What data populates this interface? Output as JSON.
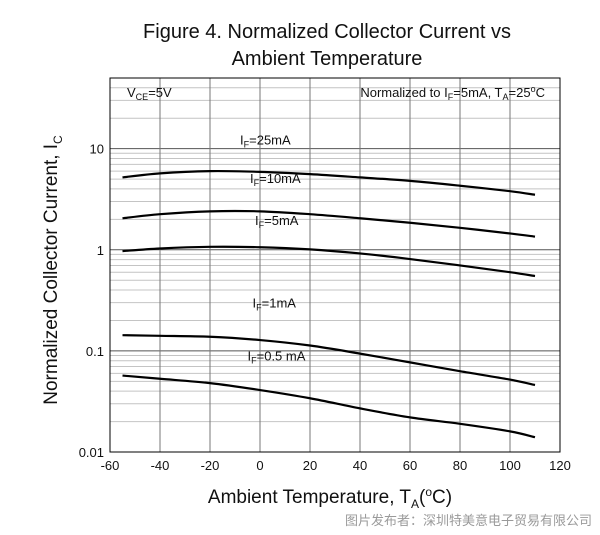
{
  "chart_data": {
    "type": "line",
    "title_lines": [
      "Figure 4. Normalized Collector Current vs",
      "Ambient Temperature"
    ],
    "xlabel": {
      "main": "Ambient Temperature, T",
      "sub": "A",
      "unit_open": "(",
      "unit_sup": "o",
      "unit_close": "C)"
    },
    "ylabel": {
      "main": "Normalized Collector Current, I",
      "sub": "C"
    },
    "xlim": [
      -60,
      120
    ],
    "ylim": [
      0.01,
      50
    ],
    "yscale": "log",
    "grid": true,
    "x_ticks": [
      -60,
      -40,
      -20,
      0,
      20,
      40,
      60,
      80,
      100,
      120
    ],
    "y_ticks": [
      {
        "value": 0.01,
        "label": "0.01"
      },
      {
        "value": 0.1,
        "label": "0.1"
      },
      {
        "value": 1,
        "label": "1"
      },
      {
        "value": 10,
        "label": "10"
      }
    ],
    "annotation_left": {
      "pre": "V",
      "sub": "CE",
      "post": "=5V"
    },
    "annotation_right": {
      "pre": "Normalized to I",
      "sub1": "F",
      "mid": "=5mA, T",
      "sub2": "A",
      "mid2": "=25",
      "sup": "o",
      "post": "C"
    },
    "series": [
      {
        "label_pre": "I",
        "label_sub": "F",
        "label_post": "=25mA",
        "label_x": -8,
        "label_y": 11,
        "x": [
          -55,
          -40,
          -20,
          0,
          20,
          40,
          60,
          80,
          100,
          110
        ],
        "y": [
          5.2,
          5.7,
          6.0,
          5.9,
          5.6,
          5.2,
          4.8,
          4.3,
          3.8,
          3.5
        ]
      },
      {
        "label_pre": "I",
        "label_sub": "F",
        "label_post": "=10mA",
        "label_x": -4,
        "label_y": 4.6,
        "x": [
          -55,
          -40,
          -20,
          0,
          20,
          40,
          60,
          80,
          100,
          110
        ],
        "y": [
          2.05,
          2.25,
          2.4,
          2.4,
          2.25,
          2.05,
          1.85,
          1.65,
          1.45,
          1.35
        ]
      },
      {
        "label_pre": "I",
        "label_sub": "F",
        "label_post": "=5mA",
        "label_x": -2,
        "label_y": 1.75,
        "x": [
          -55,
          -40,
          -20,
          0,
          20,
          40,
          60,
          80,
          100,
          110
        ],
        "y": [
          0.97,
          1.03,
          1.07,
          1.06,
          1.01,
          0.92,
          0.81,
          0.7,
          0.6,
          0.55
        ]
      },
      {
        "label_pre": "I",
        "label_sub": "F",
        "label_post": "=1mA",
        "label_x": -3,
        "label_y": 0.27,
        "x": [
          -55,
          -40,
          -20,
          0,
          20,
          40,
          60,
          80,
          100,
          110
        ],
        "y": [
          0.143,
          0.141,
          0.138,
          0.128,
          0.113,
          0.094,
          0.077,
          0.063,
          0.052,
          0.046
        ]
      },
      {
        "label_pre": "I",
        "label_sub": "F",
        "label_post": "=0.5 mA",
        "label_x": -5,
        "label_y": 0.08,
        "x": [
          -55,
          -40,
          -20,
          0,
          20,
          40,
          60,
          80,
          100,
          110
        ],
        "y": [
          0.057,
          0.053,
          0.048,
          0.041,
          0.034,
          0.027,
          0.022,
          0.019,
          0.016,
          0.014
        ]
      }
    ]
  },
  "watermark": "图片发布者：深圳特美意电子贸易有限公司"
}
